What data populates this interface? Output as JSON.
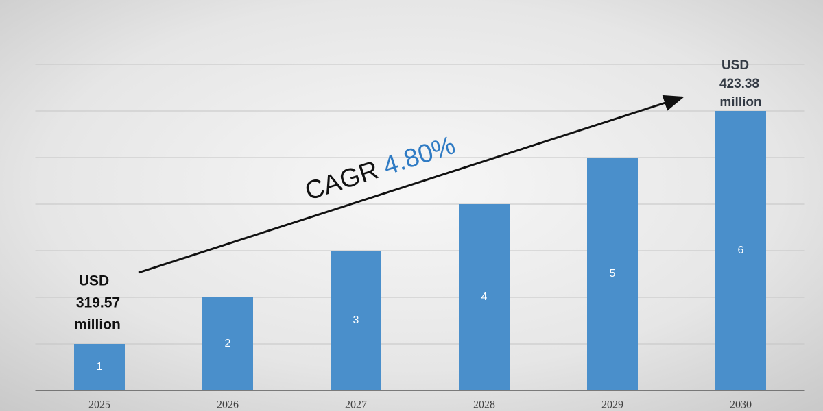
{
  "chart_data": {
    "type": "bar",
    "categories": [
      "2025",
      "2026",
      "2027",
      "2028",
      "2029",
      "2030"
    ],
    "values": [
      1,
      2,
      3,
      4,
      5,
      6
    ],
    "color": "#4a8fcb",
    "ylim": [
      0,
      7
    ],
    "yticks": [
      1,
      2,
      3,
      4,
      5,
      6,
      7
    ],
    "grid": true,
    "start_label": [
      "USD",
      "319.57",
      "million"
    ],
    "end_label": [
      "USD",
      "423.38",
      "million"
    ],
    "cagr_label": "CAGR",
    "cagr_value": "4.80%",
    "cagr_color": "#2f7bc4"
  }
}
